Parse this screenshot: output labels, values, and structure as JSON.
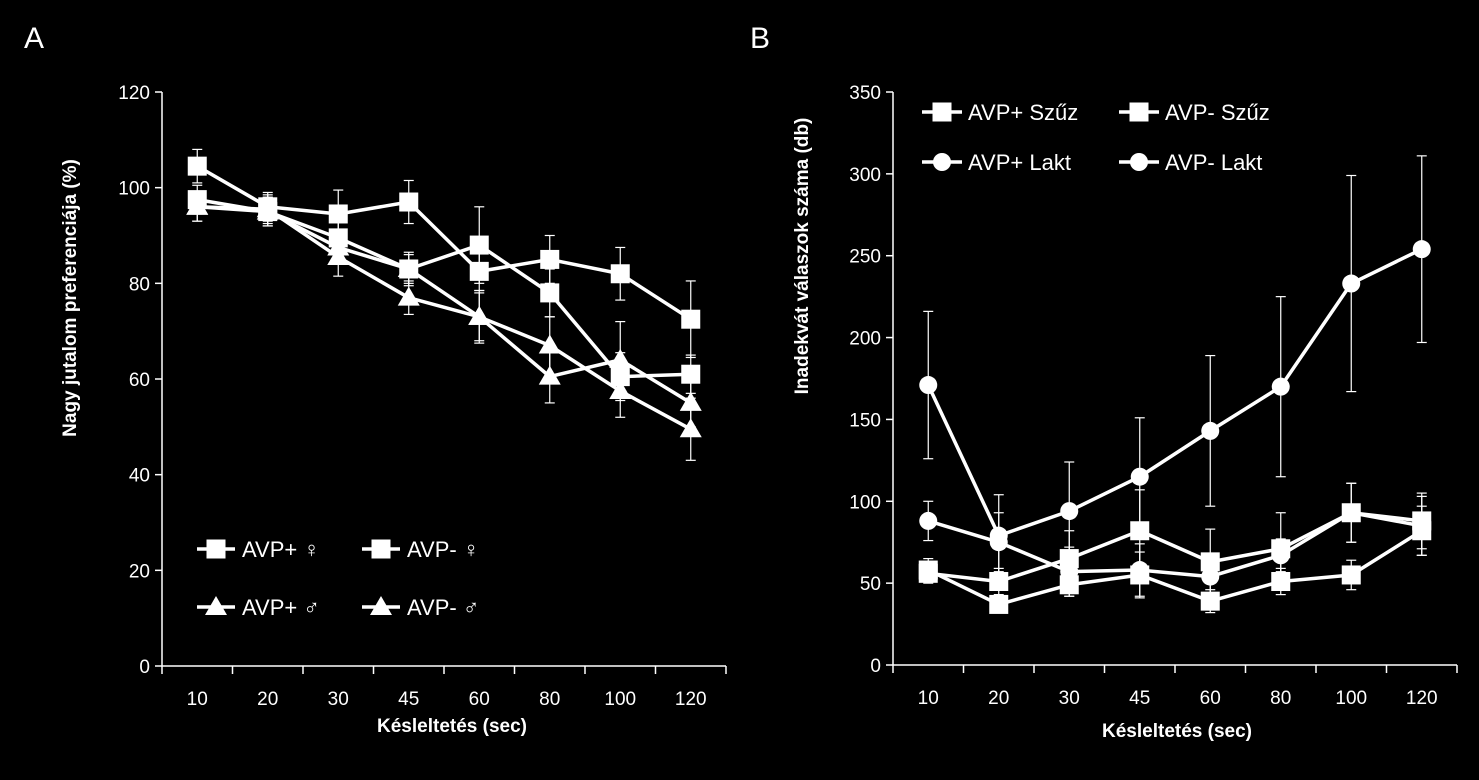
{
  "chart_data": [
    {
      "panel": "A",
      "type": "line",
      "title": "",
      "xlabel": "Késleltetés (sec)",
      "ylabel": "Nagy jutalom preferenciája (%)",
      "categories": [
        "10",
        "20",
        "30",
        "45",
        "60",
        "80",
        "100",
        "120"
      ],
      "ylim": [
        0,
        120
      ],
      "yticks": [
        0,
        20,
        40,
        60,
        80,
        100,
        120
      ],
      "grid": false,
      "legend_position": "bottom-left",
      "series": [
        {
          "name": "AVP+ ♀",
          "marker": "square",
          "values": [
            104.5,
            96,
            94.5,
            97,
            82.5,
            85,
            82,
            72.5
          ],
          "errors": [
            3.5,
            3,
            5,
            4.5,
            4,
            5,
            5.5,
            8
          ]
        },
        {
          "name": "AVP- ♀",
          "marker": "square",
          "values": [
            97.5,
            95,
            89.5,
            83,
            88,
            78,
            60.5,
            61
          ],
          "errors": [
            3,
            3,
            3.5,
            3,
            8,
            5,
            5,
            4
          ]
        },
        {
          "name": "AVP+ ♂",
          "marker": "triangle",
          "values": [
            96,
            95,
            87.5,
            83,
            73,
            60.5,
            64,
            55
          ],
          "errors": [
            3,
            3,
            3,
            3.5,
            5,
            5.5,
            8,
            5
          ]
        },
        {
          "name": "AVP- ♂",
          "marker": "triangle",
          "values": [
            96,
            95.5,
            85.5,
            77,
            73,
            67,
            57.5,
            49.5
          ],
          "errors": [
            3,
            3,
            4,
            3.5,
            5.5,
            6,
            5.5,
            6.5
          ]
        }
      ]
    },
    {
      "panel": "B",
      "type": "line",
      "title": "",
      "xlabel": "Késleltetés (sec)",
      "ylabel": "Inadekvát válaszok száma (db)",
      "categories": [
        "10",
        "20",
        "30",
        "45",
        "60",
        "80",
        "100",
        "120"
      ],
      "ylim": [
        0,
        350
      ],
      "yticks": [
        0,
        50,
        100,
        150,
        200,
        250,
        300,
        350
      ],
      "grid": false,
      "legend_position": "top-left",
      "series": [
        {
          "name": "AVP+ Szűz",
          "marker": "square",
          "values": [
            58,
            37,
            49,
            55,
            39,
            51,
            55,
            82
          ],
          "errors": [
            7,
            5,
            7,
            14,
            7,
            8,
            9,
            15
          ]
        },
        {
          "name": "AVP- Szűz",
          "marker": "square",
          "values": [
            56,
            51,
            65,
            82,
            63,
            71,
            93,
            88
          ],
          "errors": [
            6,
            8,
            17,
            25,
            20,
            22,
            18,
            17
          ]
        },
        {
          "name": "AVP+ Lakt",
          "marker": "circle",
          "values": [
            171,
            79,
            94,
            115,
            143,
            170,
            233,
            254
          ],
          "errors": [
            45,
            25,
            30,
            36,
            46,
            55,
            66,
            57
          ]
        },
        {
          "name": "AVP- Lakt",
          "marker": "circle",
          "values": [
            88,
            75,
            57,
            58,
            54,
            67,
            93,
            85
          ],
          "errors": [
            12,
            18,
            15,
            16,
            14,
            10,
            18,
            18
          ]
        }
      ]
    }
  ]
}
